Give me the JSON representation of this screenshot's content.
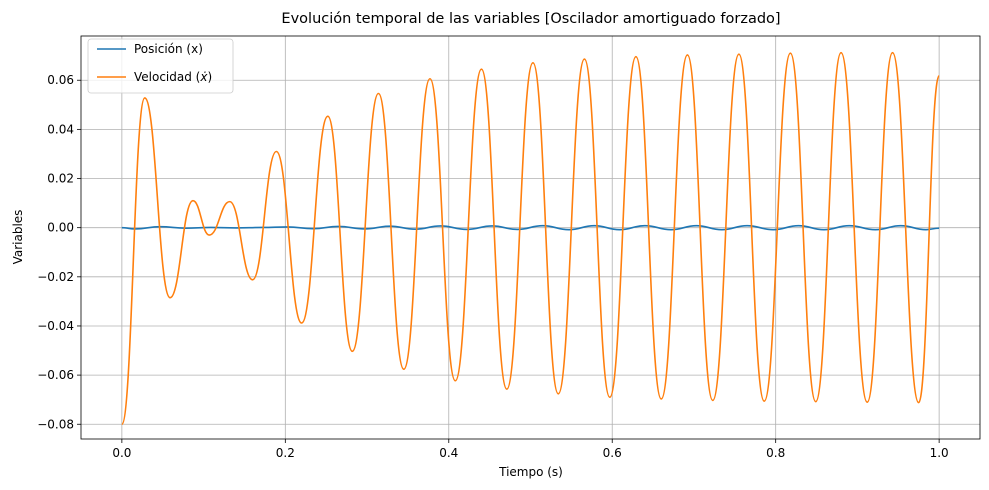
{
  "chart_data": {
    "type": "line",
    "title": "Evolución temporal de las variables [Oscilador amortiguado forzado]",
    "xlabel": "Tiempo (s)",
    "ylabel": "Variables",
    "xlim": [
      -0.05,
      1.05
    ],
    "ylim": [
      -0.086,
      0.078
    ],
    "xticks": [
      0.0,
      0.2,
      0.4,
      0.6,
      0.8,
      1.0
    ],
    "xtick_labels": [
      "0.0",
      "0.2",
      "0.4",
      "0.6",
      "0.8",
      "1.0"
    ],
    "yticks": [
      -0.08,
      -0.06,
      -0.04,
      -0.02,
      0.0,
      0.02,
      0.04,
      0.06
    ],
    "ytick_labels": [
      "−0.08",
      "−0.06",
      "−0.04",
      "−0.02",
      "0.00",
      "0.02",
      "0.04",
      "0.06"
    ],
    "grid": true,
    "legend_position": "top-left",
    "series": [
      {
        "name": "Posición (x)",
        "color": "#1f77b4",
        "x": [
          0.0,
          0.016,
          0.047,
          0.078,
          0.109,
          0.14,
          0.172,
          0.203,
          0.234,
          0.265,
          0.297,
          0.328,
          0.359,
          0.39,
          0.422,
          0.453,
          0.484,
          0.515,
          0.547,
          0.578,
          0.609,
          0.64,
          0.672,
          0.703,
          0.734,
          0.765,
          0.797,
          0.828,
          0.859,
          0.89,
          0.922,
          0.953,
          0.984,
          1.0
        ],
        "y": [
          0.0,
          -0.0005,
          0.0004,
          -0.0002,
          0.0001,
          -0.0001,
          0.0001,
          0.0003,
          -0.0004,
          0.0005,
          -0.0005,
          0.0006,
          -0.0006,
          0.0007,
          -0.0007,
          0.0007,
          -0.0007,
          0.0008,
          -0.0008,
          0.0008,
          -0.0008,
          0.0008,
          -0.0008,
          0.0008,
          -0.0008,
          0.0008,
          -0.0008,
          0.0008,
          -0.0008,
          0.0008,
          -0.0008,
          0.0008,
          -0.0008,
          -0.0002
        ]
      },
      {
        "name": "Velocidad ($\\dot{x}$)",
        "color": "#ff7f0e",
        "x": [
          0.0,
          0.028,
          0.059,
          0.087,
          0.107,
          0.132,
          0.16,
          0.189,
          0.22,
          0.252,
          0.282,
          0.314,
          0.345,
          0.377,
          0.408,
          0.44,
          0.471,
          0.503,
          0.534,
          0.566,
          0.597,
          0.629,
          0.66,
          0.692,
          0.723,
          0.755,
          0.786,
          0.818,
          0.849,
          0.88,
          0.912,
          0.943,
          0.975,
          1.0
        ],
        "y": [
          -0.08,
          0.0528,
          -0.0285,
          0.011,
          -0.003,
          0.0106,
          -0.0212,
          0.031,
          -0.0388,
          0.0453,
          -0.0503,
          0.0546,
          -0.0576,
          0.0606,
          -0.0623,
          0.0645,
          -0.0657,
          0.0671,
          -0.0676,
          0.0686,
          -0.069,
          0.0696,
          -0.0697,
          0.0703,
          -0.0703,
          0.0706,
          -0.0706,
          0.071,
          -0.0708,
          0.0712,
          -0.071,
          0.0712,
          -0.0712,
          0.0618
        ]
      }
    ]
  }
}
